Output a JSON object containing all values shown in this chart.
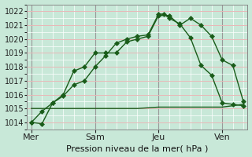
{
  "title": "",
  "xlabel": "Pression niveau de la mer( hPa )",
  "ylabel": "",
  "bg_color": "#c8e8d8",
  "plot_bg_color": "#c8e8d8",
  "grid_major_color": "#e8b8b8",
  "grid_minor_color": "#ffffff",
  "line_color": "#1a5c1a",
  "ylim": [
    1013.5,
    1022.5
  ],
  "yticks": [
    1014,
    1015,
    1016,
    1017,
    1018,
    1019,
    1020,
    1021,
    1022
  ],
  "xtick_labels": [
    "Mer",
    "Sam",
    "Jeu",
    "Ven"
  ],
  "xtick_positions": [
    0,
    3,
    6,
    9
  ],
  "vline_positions": [
    0,
    3,
    6,
    9
  ],
  "line1_x": [
    0,
    0.5,
    1,
    1.5,
    2,
    2.5,
    3,
    3.5,
    4,
    4.5,
    5,
    5.5,
    6,
    6.25,
    6.5,
    7,
    7.5,
    8,
    8.5,
    9,
    9.5,
    10
  ],
  "line1_y": [
    1014.0,
    1013.9,
    1015.4,
    1015.9,
    1016.7,
    1017.0,
    1018.0,
    1018.8,
    1019.7,
    1020.0,
    1020.2,
    1020.3,
    1021.8,
    1021.8,
    1021.5,
    1021.1,
    1020.1,
    1018.1,
    1017.4,
    1015.4,
    1015.3,
    1015.2
  ],
  "line2_x": [
    0,
    0.5,
    1,
    1.5,
    2,
    2.5,
    3,
    3.5,
    4,
    4.5,
    5,
    5.5,
    6,
    6.5,
    7,
    7.5,
    8,
    8.5,
    9,
    9.5,
    10
  ],
  "line2_y": [
    1014.0,
    1014.8,
    1015.4,
    1016.0,
    1017.7,
    1018.0,
    1019.0,
    1019.0,
    1019.0,
    1019.8,
    1020.0,
    1020.2,
    1021.7,
    1021.7,
    1021.0,
    1021.5,
    1021.0,
    1020.2,
    1018.5,
    1018.1,
    1015.5
  ],
  "line3_x": [
    0,
    1,
    2,
    3,
    4,
    5,
    6,
    7,
    8,
    9,
    10
  ],
  "line3_y": [
    1015.0,
    1015.0,
    1015.0,
    1015.0,
    1015.0,
    1015.0,
    1015.1,
    1015.1,
    1015.1,
    1015.1,
    1015.3
  ],
  "marker_size": 4,
  "linewidth": 1.0,
  "xlabel_fontsize": 8,
  "ytick_fontsize": 7,
  "xtick_fontsize": 8,
  "figsize": [
    3.2,
    2.0
  ],
  "dpi": 100
}
